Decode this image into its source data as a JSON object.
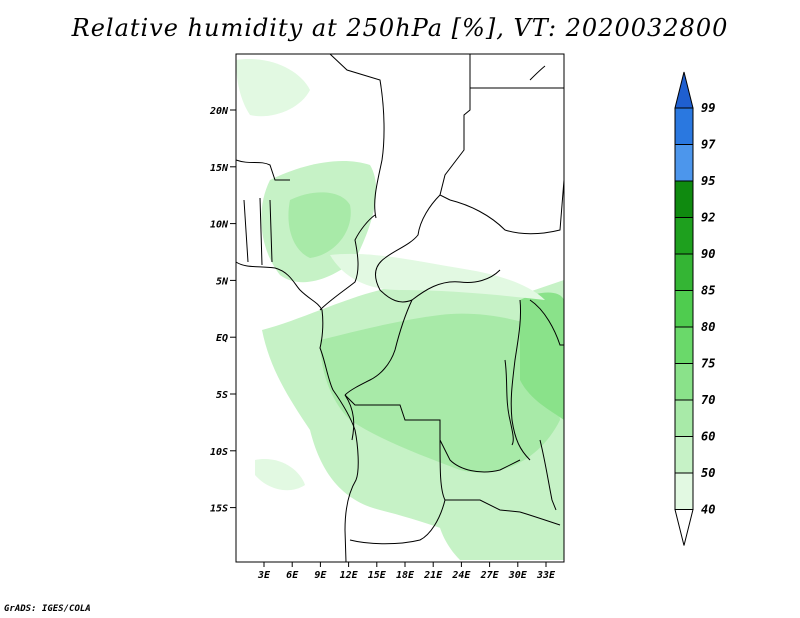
{
  "title": "Relative humidity at 250hPa [%], VT: 2020032800",
  "credit": "GrADS: IGES/COLA",
  "map": {
    "lon_range": [
      0,
      35
    ],
    "lat_range": [
      -20,
      25
    ],
    "lat_ticks": [
      "20N",
      "15N",
      "10N",
      "5N",
      "EQ",
      "5S",
      "10S",
      "15S"
    ],
    "lon_ticks": [
      "3E",
      "6E",
      "9E",
      "12E",
      "15E",
      "18E",
      "21E",
      "24E",
      "27E",
      "30E",
      "33E"
    ]
  },
  "colorbar": {
    "levels": [
      "99",
      "97",
      "95",
      "92",
      "90",
      "85",
      "80",
      "75",
      "70",
      "60",
      "50",
      "40"
    ],
    "colors": [
      "#1f5fd0",
      "#2a78e0",
      "#4c96ec",
      "#0f8a0f",
      "#1ea01e",
      "#34b534",
      "#4fcc4f",
      "#6ad96a",
      "#8ae28a",
      "#a8eaa8",
      "#c6f2c6",
      "#e2f9e2",
      "#ffffff"
    ]
  }
}
